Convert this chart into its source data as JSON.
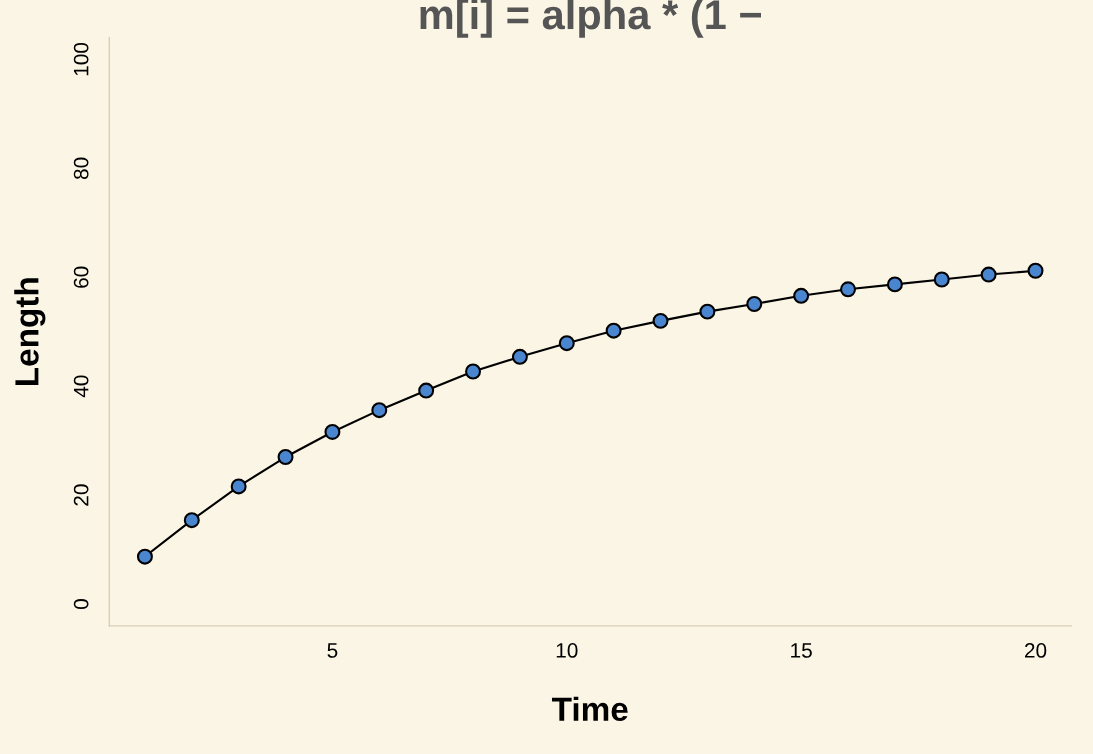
{
  "chart_data": {
    "type": "line",
    "title": "m[i] = alpha * (1 −",
    "xlabel": "Time",
    "ylabel": "Length",
    "x": [
      1,
      2,
      3,
      4,
      5,
      6,
      7,
      8,
      9,
      10,
      11,
      12,
      13,
      14,
      15,
      16,
      17,
      18,
      19,
      20
    ],
    "series": [
      {
        "color": "#000000",
        "values": [
          8.7,
          15.4,
          21.6,
          27.0,
          31.6,
          35.6,
          39.2,
          42.7,
          45.4,
          47.9,
          50.2,
          52.0,
          53.7,
          55.1,
          56.6,
          57.8,
          58.7,
          59.6,
          60.5,
          61.2
        ]
      }
    ],
    "marker": "circle",
    "line_style": "solid",
    "xlim": [
      0.24,
      20.76
    ],
    "ylim": [
      -4,
      104
    ],
    "xticks": [
      5,
      10,
      15,
      20
    ],
    "yticks": [
      0,
      20,
      40,
      60,
      80,
      100
    ],
    "grid": false,
    "legend": false
  }
}
